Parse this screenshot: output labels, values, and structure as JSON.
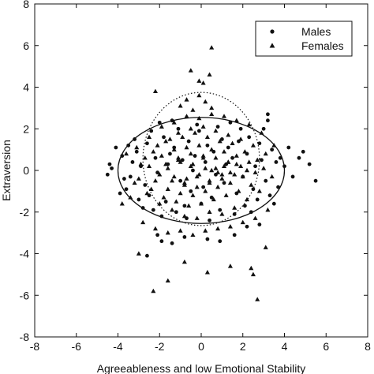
{
  "chart_data": {
    "type": "scatter",
    "title": "",
    "xlabel": "Agreeableness and low Emotional Stability",
    "ylabel": "Extraversion",
    "xlim": [
      -8,
      8
    ],
    "ylim": [
      -8,
      8
    ],
    "xticks": [
      -8,
      -6,
      -4,
      -2,
      0,
      2,
      4,
      6,
      8
    ],
    "yticks": [
      -8,
      -6,
      -4,
      -2,
      0,
      2,
      4,
      6,
      8
    ],
    "grid": false,
    "legend": "top-right",
    "series": [
      {
        "name": "Males",
        "marker": "circle",
        "x": [
          -4.3,
          -4.4,
          -4.5,
          -4.1,
          -3.9,
          -3.7,
          -3.8,
          -3.5,
          -3.6,
          -3.3,
          -3.4,
          -3.2,
          -3.0,
          -3.1,
          -2.8,
          -2.9,
          -2.6,
          -2.7,
          -2.4,
          -2.5,
          -2.2,
          -2.3,
          -2.0,
          -2.1,
          -1.8,
          -1.9,
          -1.6,
          -1.7,
          -1.4,
          -1.5,
          -1.2,
          -1.3,
          -1.0,
          -1.1,
          -0.8,
          -0.9,
          -0.6,
          -0.7,
          -0.4,
          -0.5,
          -0.2,
          -0.3,
          0.0,
          -0.1,
          0.2,
          0.1,
          0.4,
          0.3,
          0.6,
          0.5,
          0.8,
          0.7,
          1.0,
          0.9,
          1.2,
          1.1,
          1.4,
          1.3,
          1.6,
          1.5,
          1.8,
          1.7,
          2.0,
          1.9,
          2.2,
          2.1,
          2.4,
          2.3,
          2.6,
          2.5,
          2.8,
          2.7,
          3.0,
          2.9,
          3.2,
          3.1,
          3.4,
          3.3,
          3.6,
          3.5,
          3.8,
          3.7,
          4.0,
          4.2,
          4.4,
          4.7,
          4.9,
          5.2,
          5.5,
          -1.9,
          -2.1,
          -1.4,
          -0.8,
          0.3,
          0.9,
          1.6,
          2.2,
          2.8,
          -2.6,
          3.2
        ],
        "y": [
          0.1,
          0.3,
          -0.2,
          1.1,
          -1.1,
          -0.4,
          0.7,
          1.2,
          -0.9,
          0.4,
          -0.3,
          1.5,
          -1.4,
          0.9,
          -1.8,
          0.2,
          1.3,
          -0.7,
          1.9,
          -1.2,
          0.6,
          -1.9,
          2.3,
          -0.1,
          1.6,
          -2.2,
          0.3,
          -1.5,
          2.4,
          0.8,
          -2.0,
          1.1,
          -0.5,
          2.0,
          -1.7,
          0.5,
          1.4,
          -2.3,
          0.0,
          -1.0,
          2.2,
          0.7,
          -1.6,
          1.9,
          0.4,
          -0.8,
          -2.4,
          1.2,
          0.9,
          -1.3,
          2.1,
          -0.2,
          1.5,
          -1.9,
          0.3,
          -0.6,
          2.3,
          1.1,
          -2.1,
          0.6,
          1.4,
          -1.1,
          -0.3,
          2.0,
          0.8,
          -1.7,
          -2.0,
          1.6,
          0.2,
          -0.9,
          1.3,
          -1.4,
          2.0,
          0.5,
          2.4,
          -0.5,
          1.0,
          -1.2,
          0.4,
          -1.6,
          0.6,
          -0.8,
          0.2,
          1.1,
          -0.3,
          0.6,
          0.9,
          0.3,
          -0.5,
          -3.4,
          -3.1,
          -3.5,
          -3.2,
          -3.3,
          -3.4,
          -3.1,
          -2.7,
          -2.6,
          -4.1,
          2.7
        ],
        "color": "#111111"
      },
      {
        "name": "Females",
        "marker": "triangle",
        "x": [
          -3.8,
          -3.4,
          -3.1,
          -2.8,
          -2.5,
          -2.2,
          -1.9,
          -1.6,
          -1.3,
          -1.0,
          -0.7,
          -0.4,
          -0.1,
          0.2,
          0.5,
          0.8,
          1.1,
          1.4,
          1.7,
          2.0,
          2.3,
          2.6,
          2.9,
          3.2,
          3.5,
          -3.6,
          -3.2,
          -2.9,
          -2.6,
          -2.3,
          -2.0,
          -1.7,
          -1.4,
          -1.1,
          -0.8,
          -0.5,
          -0.2,
          0.1,
          0.4,
          0.7,
          1.0,
          1.3,
          1.6,
          1.9,
          2.2,
          2.5,
          2.8,
          3.1,
          3.4,
          -3.0,
          -2.7,
          -2.4,
          -2.1,
          -1.8,
          -1.5,
          -1.2,
          -0.9,
          -0.6,
          -0.3,
          0.0,
          0.3,
          0.6,
          0.9,
          1.2,
          1.5,
          1.8,
          2.1,
          2.4,
          2.7,
          3.0,
          -2.5,
          -2.2,
          -1.9,
          -1.6,
          -1.3,
          -1.0,
          -0.7,
          -0.4,
          -0.1,
          0.2,
          0.5,
          0.8,
          1.1,
          1.4,
          1.7,
          2.0,
          2.3,
          2.6,
          -2.0,
          -1.7,
          -1.4,
          -1.1,
          -0.8,
          -0.5,
          -0.2,
          0.1,
          0.4,
          0.7,
          1.0,
          1.3,
          1.6,
          1.9,
          2.2,
          -1.6,
          -1.3,
          -1.0,
          -0.7,
          -0.4,
          -0.1,
          0.2,
          0.5,
          0.8,
          1.1,
          1.4,
          1.7,
          -1.1,
          -0.8,
          -0.5,
          -0.2,
          0.1,
          0.4,
          0.7,
          1.0,
          1.3,
          -1.0,
          -0.7,
          -0.4,
          -0.1,
          0.2,
          0.5,
          -0.5,
          0.4,
          0.1,
          -0.1,
          0.5,
          2.5,
          -2.2,
          -2.3,
          -1.6,
          -0.8,
          0.3,
          1.4,
          2.4,
          2.7,
          -3.0,
          3.1
        ],
        "y": [
          -1.6,
          -1.3,
          1.1,
          -2.5,
          1.6,
          -2.8,
          2.1,
          -3.0,
          2.3,
          -2.9,
          2.6,
          -3.1,
          2.5,
          -2.9,
          2.7,
          -2.8,
          2.6,
          -2.7,
          2.4,
          -2.5,
          2.2,
          -2.3,
          1.8,
          -1.9,
          1.2,
          0.8,
          -0.6,
          0.3,
          -1.1,
          0.9,
          -1.6,
          1.4,
          -1.9,
          1.8,
          -2.2,
          2.0,
          -2.3,
          2.1,
          -2.0,
          1.9,
          -2.1,
          1.7,
          -1.8,
          1.5,
          -1.4,
          1.2,
          -1.0,
          0.8,
          -0.3,
          -0.4,
          0.6,
          -0.9,
          1.2,
          -1.3,
          1.5,
          -1.5,
          1.6,
          -1.7,
          1.8,
          -1.6,
          1.6,
          -1.4,
          1.4,
          -1.2,
          1.3,
          -1.0,
          0.9,
          -0.7,
          0.5,
          0.1,
          0.2,
          -0.5,
          0.7,
          -0.9,
          1.0,
          -1.1,
          1.1,
          -1.2,
          1.2,
          -1.0,
          1.0,
          -0.8,
          0.9,
          -0.6,
          0.7,
          -0.3,
          0.4,
          -0.1,
          -0.2,
          0.3,
          -0.5,
          0.6,
          -0.7,
          0.8,
          -0.8,
          0.7,
          -0.6,
          0.6,
          -0.4,
          0.4,
          -0.2,
          0.2,
          0.0,
          0.1,
          -0.3,
          0.4,
          -0.4,
          0.3,
          -0.2,
          0.1,
          0.0,
          -0.1,
          0.2,
          -0.1,
          0.3,
          0.5,
          -0.6,
          0.2,
          -0.3,
          0.6,
          -0.5,
          0.1,
          -0.2,
          0.4,
          3.1,
          3.4,
          2.9,
          3.6,
          3.3,
          3.0,
          4.8,
          4.6,
          4.2,
          4.3,
          5.9,
          -5.0,
          3.8,
          -5.8,
          -5.3,
          -4.4,
          -4.9,
          -4.6,
          -4.7,
          -6.2,
          -4.0,
          -3.7
        ],
        "color": "#111111"
      }
    ],
    "ellipses": [
      {
        "name": "males-ellipse",
        "style": "solid",
        "cx": 0.0,
        "cy": 0.0,
        "rx": 4.0,
        "ry": 2.55
      },
      {
        "name": "females-ellipse",
        "style": "dotted",
        "cx": 0.0,
        "cy": 0.55,
        "rx": 2.8,
        "ry": 3.2
      }
    ]
  }
}
